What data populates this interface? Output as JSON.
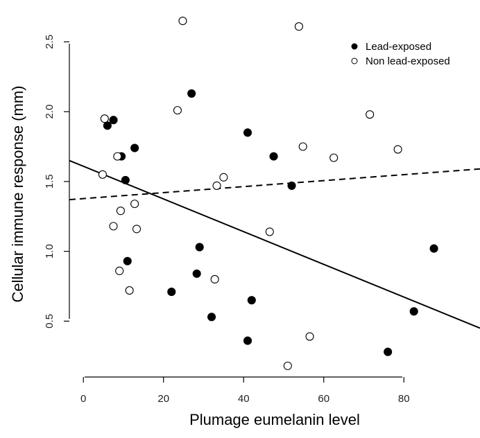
{
  "chart_data": {
    "type": "scatter",
    "xlabel": "Plumage eumelanin level",
    "ylabel": "Cellular immune response (mm)",
    "xlim": [
      -3.5,
      99
    ],
    "ylim": [
      0.1,
      2.75
    ],
    "xticks": [
      0,
      20,
      40,
      60,
      80
    ],
    "yticks": [
      0.5,
      1.0,
      1.5,
      2.0,
      2.5
    ],
    "xtick_labels": [
      "0",
      "20",
      "40",
      "60",
      "80"
    ],
    "ytick_labels": [
      "0.5",
      "1.0",
      "1.5",
      "2.0",
      "2.5"
    ],
    "legend_position": "top-right",
    "series": [
      {
        "name": "Lead-exposed",
        "marker": "filled-circle",
        "points": [
          [
            6.0,
            1.9
          ],
          [
            7.5,
            1.94
          ],
          [
            9.5,
            1.68
          ],
          [
            10.5,
            1.51
          ],
          [
            11.0,
            0.93
          ],
          [
            12.8,
            1.74
          ],
          [
            22.0,
            0.71
          ],
          [
            27.0,
            2.13
          ],
          [
            28.3,
            0.84
          ],
          [
            29.0,
            1.03
          ],
          [
            32.0,
            0.53
          ],
          [
            41.0,
            1.85
          ],
          [
            41.0,
            0.36
          ],
          [
            42.0,
            0.65
          ],
          [
            47.5,
            1.68
          ],
          [
            52.0,
            1.47
          ],
          [
            76.0,
            0.28
          ],
          [
            82.5,
            0.57
          ],
          [
            87.5,
            1.02
          ]
        ],
        "trend": {
          "style": "solid",
          "x": [
            -3.5,
            99
          ],
          "y": [
            1.65,
            0.45
          ]
        }
      },
      {
        "name": "Non lead-exposed",
        "marker": "open-circle",
        "points": [
          [
            4.8,
            1.55
          ],
          [
            5.3,
            1.95
          ],
          [
            7.5,
            1.18
          ],
          [
            8.5,
            1.68
          ],
          [
            9.0,
            0.86
          ],
          [
            9.3,
            1.29
          ],
          [
            11.5,
            0.72
          ],
          [
            12.8,
            1.34
          ],
          [
            13.3,
            1.16
          ],
          [
            23.5,
            2.01
          ],
          [
            24.8,
            2.65
          ],
          [
            32.8,
            0.8
          ],
          [
            33.3,
            1.47
          ],
          [
            35.0,
            1.53
          ],
          [
            46.5,
            1.14
          ],
          [
            51.0,
            0.18
          ],
          [
            53.8,
            2.61
          ],
          [
            54.8,
            1.75
          ],
          [
            56.5,
            0.39
          ],
          [
            62.5,
            1.67
          ],
          [
            71.5,
            1.98
          ],
          [
            78.5,
            1.73
          ]
        ],
        "trend": {
          "style": "dashed",
          "x": [
            -3.5,
            99
          ],
          "y": [
            1.37,
            1.59
          ]
        }
      }
    ]
  }
}
